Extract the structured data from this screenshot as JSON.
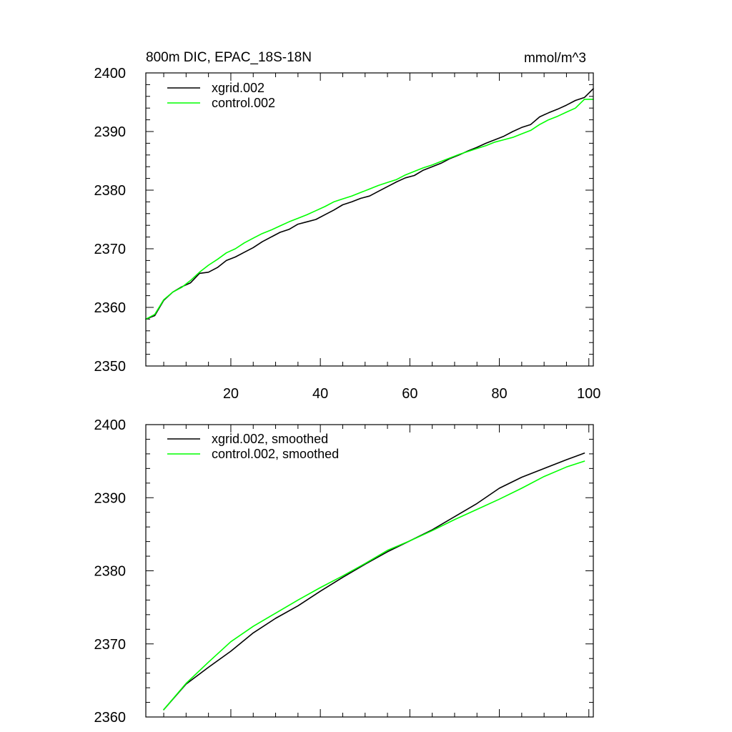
{
  "chart_data": [
    {
      "type": "line",
      "title": "800m DIC, EPAC_18S-18N",
      "units": "mmol/m^3",
      "xlabel": "",
      "ylabel": "",
      "xlim": [
        1,
        101
      ],
      "ylim": [
        2350,
        2400
      ],
      "xticks": [
        20,
        40,
        60,
        80,
        100
      ],
      "yticks": [
        2350,
        2360,
        2370,
        2380,
        2390,
        2400
      ],
      "grid": false,
      "legend_position": "top-left",
      "series": [
        {
          "name": "xgrid.002",
          "color": "#000000",
          "x": [
            1,
            3,
            5,
            7,
            9,
            11,
            13,
            15,
            17,
            19,
            21,
            23,
            25,
            27,
            29,
            31,
            33,
            35,
            37,
            39,
            41,
            43,
            45,
            47,
            49,
            51,
            53,
            55,
            57,
            59,
            61,
            63,
            65,
            67,
            69,
            71,
            73,
            75,
            77,
            79,
            81,
            83,
            85,
            87,
            89,
            91,
            93,
            95,
            97,
            99,
            101
          ],
          "y": [
            2358.0,
            2358.6,
            2361.2,
            2362.6,
            2363.5,
            2364.2,
            2365.8,
            2366.0,
            2366.8,
            2368.0,
            2368.6,
            2369.4,
            2370.2,
            2371.2,
            2372.0,
            2372.8,
            2373.3,
            2374.2,
            2374.6,
            2375.0,
            2375.8,
            2376.6,
            2377.5,
            2378.0,
            2378.6,
            2379.0,
            2379.8,
            2380.6,
            2381.4,
            2382.1,
            2382.5,
            2383.4,
            2384.0,
            2384.6,
            2385.4,
            2386.0,
            2386.7,
            2387.3,
            2388.0,
            2388.6,
            2389.2,
            2390.0,
            2390.7,
            2391.2,
            2392.5,
            2393.2,
            2393.8,
            2394.5,
            2395.3,
            2395.8,
            2397.3
          ]
        },
        {
          "name": "control.002",
          "color": "#00ff00",
          "x": [
            1,
            3,
            5,
            7,
            9,
            11,
            13,
            15,
            17,
            19,
            21,
            23,
            25,
            27,
            29,
            31,
            33,
            35,
            37,
            39,
            41,
            43,
            45,
            47,
            49,
            51,
            53,
            55,
            57,
            59,
            61,
            63,
            65,
            67,
            69,
            71,
            73,
            75,
            77,
            79,
            81,
            83,
            85,
            87,
            89,
            91,
            93,
            95,
            97,
            99,
            101
          ],
          "y": [
            2358.0,
            2358.8,
            2361.3,
            2362.6,
            2363.4,
            2364.6,
            2366.0,
            2367.2,
            2368.2,
            2369.3,
            2370.0,
            2371.0,
            2371.8,
            2372.6,
            2373.2,
            2373.9,
            2374.6,
            2375.2,
            2375.8,
            2376.5,
            2377.2,
            2378.0,
            2378.5,
            2379.0,
            2379.6,
            2380.2,
            2380.8,
            2381.3,
            2381.8,
            2382.6,
            2383.2,
            2383.8,
            2384.3,
            2384.9,
            2385.5,
            2386.1,
            2386.6,
            2387.1,
            2387.6,
            2388.2,
            2388.6,
            2389.0,
            2389.6,
            2390.2,
            2391.2,
            2392.0,
            2392.6,
            2393.3,
            2394.0,
            2395.5,
            2395.5
          ]
        }
      ]
    },
    {
      "type": "line",
      "title": "",
      "xlabel": "",
      "ylabel": "",
      "xlim": [
        1,
        101
      ],
      "ylim": [
        2360,
        2400
      ],
      "yticks": [
        2360,
        2370,
        2380,
        2390,
        2400
      ],
      "grid": false,
      "legend_position": "top-left",
      "series": [
        {
          "name": "xgrid.002, smoothed",
          "color": "#000000",
          "x": [
            5,
            10,
            15,
            20,
            25,
            30,
            35,
            40,
            45,
            50,
            55,
            60,
            65,
            70,
            75,
            80,
            85,
            90,
            95,
            99
          ],
          "y": [
            2361.0,
            2364.5,
            2366.8,
            2369.0,
            2371.5,
            2373.5,
            2375.2,
            2377.2,
            2379.1,
            2380.9,
            2382.6,
            2384.1,
            2385.6,
            2387.4,
            2389.2,
            2391.3,
            2392.8,
            2394.0,
            2395.2,
            2396.1
          ]
        },
        {
          "name": "control.002, smoothed",
          "color": "#00ff00",
          "x": [
            5,
            10,
            15,
            20,
            25,
            30,
            35,
            40,
            45,
            50,
            55,
            60,
            65,
            70,
            75,
            80,
            85,
            90,
            95,
            99
          ],
          "y": [
            2361.0,
            2364.6,
            2367.5,
            2370.3,
            2372.4,
            2374.2,
            2376.0,
            2377.7,
            2379.3,
            2381.0,
            2382.8,
            2384.1,
            2385.5,
            2387.0,
            2388.4,
            2389.8,
            2391.3,
            2392.9,
            2394.2,
            2395.0
          ]
        }
      ]
    }
  ]
}
